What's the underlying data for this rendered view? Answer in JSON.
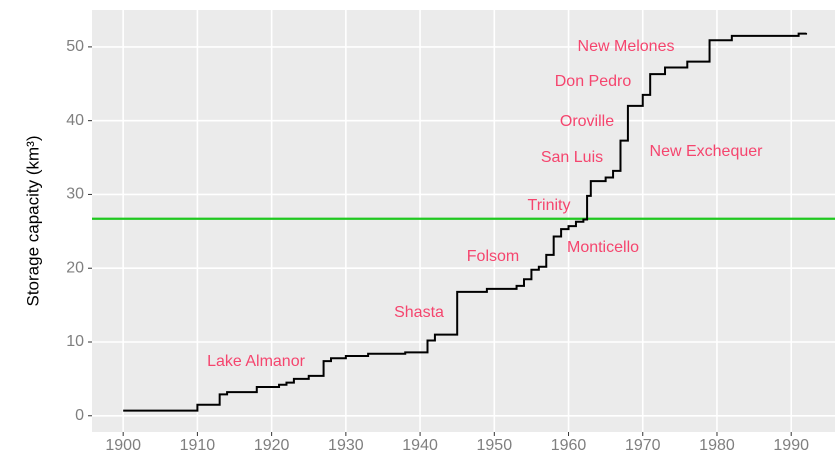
{
  "chart_data": {
    "type": "step",
    "y_label": "Storage capacity (km³)",
    "x": [
      1900,
      1910,
      1913,
      1914,
      1918,
      1921,
      1922,
      1923,
      1925,
      1927,
      1928,
      1930,
      1933,
      1938,
      1941,
      1942,
      1945,
      1949,
      1953,
      1954,
      1955,
      1956,
      1957,
      1958,
      1959,
      1960,
      1961,
      1962,
      1962.5,
      1963,
      1965,
      1966,
      1967,
      1968,
      1970,
      1971,
      1973,
      1976,
      1979,
      1982,
      1991,
      1992
    ],
    "values": [
      0.7,
      1.5,
      2.9,
      3.2,
      3.9,
      4.2,
      4.5,
      5.0,
      5.4,
      7.4,
      7.8,
      8.1,
      8.4,
      8.6,
      10.2,
      11.0,
      16.8,
      17.2,
      17.6,
      18.5,
      19.8,
      20.2,
      21.8,
      24.3,
      25.3,
      25.7,
      26.3,
      26.6,
      29.8,
      31.8,
      32.3,
      33.2,
      37.3,
      42.0,
      43.5,
      46.3,
      47.2,
      48.0,
      50.9,
      51.5,
      51.8,
      51.9
    ],
    "color": "#000000",
    "hline": {
      "value": 26.7,
      "color": "#1fc81f"
    },
    "annotations": [
      "Lake Almanor",
      "Shasta",
      "Folsom",
      "Monticello",
      "Trinity",
      "San Luis",
      "New Exchequer",
      "Oroville",
      "Don Pedro",
      "New Melones"
    ],
    "annotation_color": "#f5456e",
    "xlim": [
      1895.8,
      1995.9
    ],
    "ylim": [
      -2.2,
      55.0
    ],
    "xticks": [
      1900,
      1910,
      1920,
      1930,
      1940,
      1950,
      1960,
      1970,
      1980,
      1990
    ],
    "yticks": [
      0,
      10,
      20,
      30,
      40,
      50
    ],
    "grid": true,
    "panel_color": "#ebebeb"
  }
}
